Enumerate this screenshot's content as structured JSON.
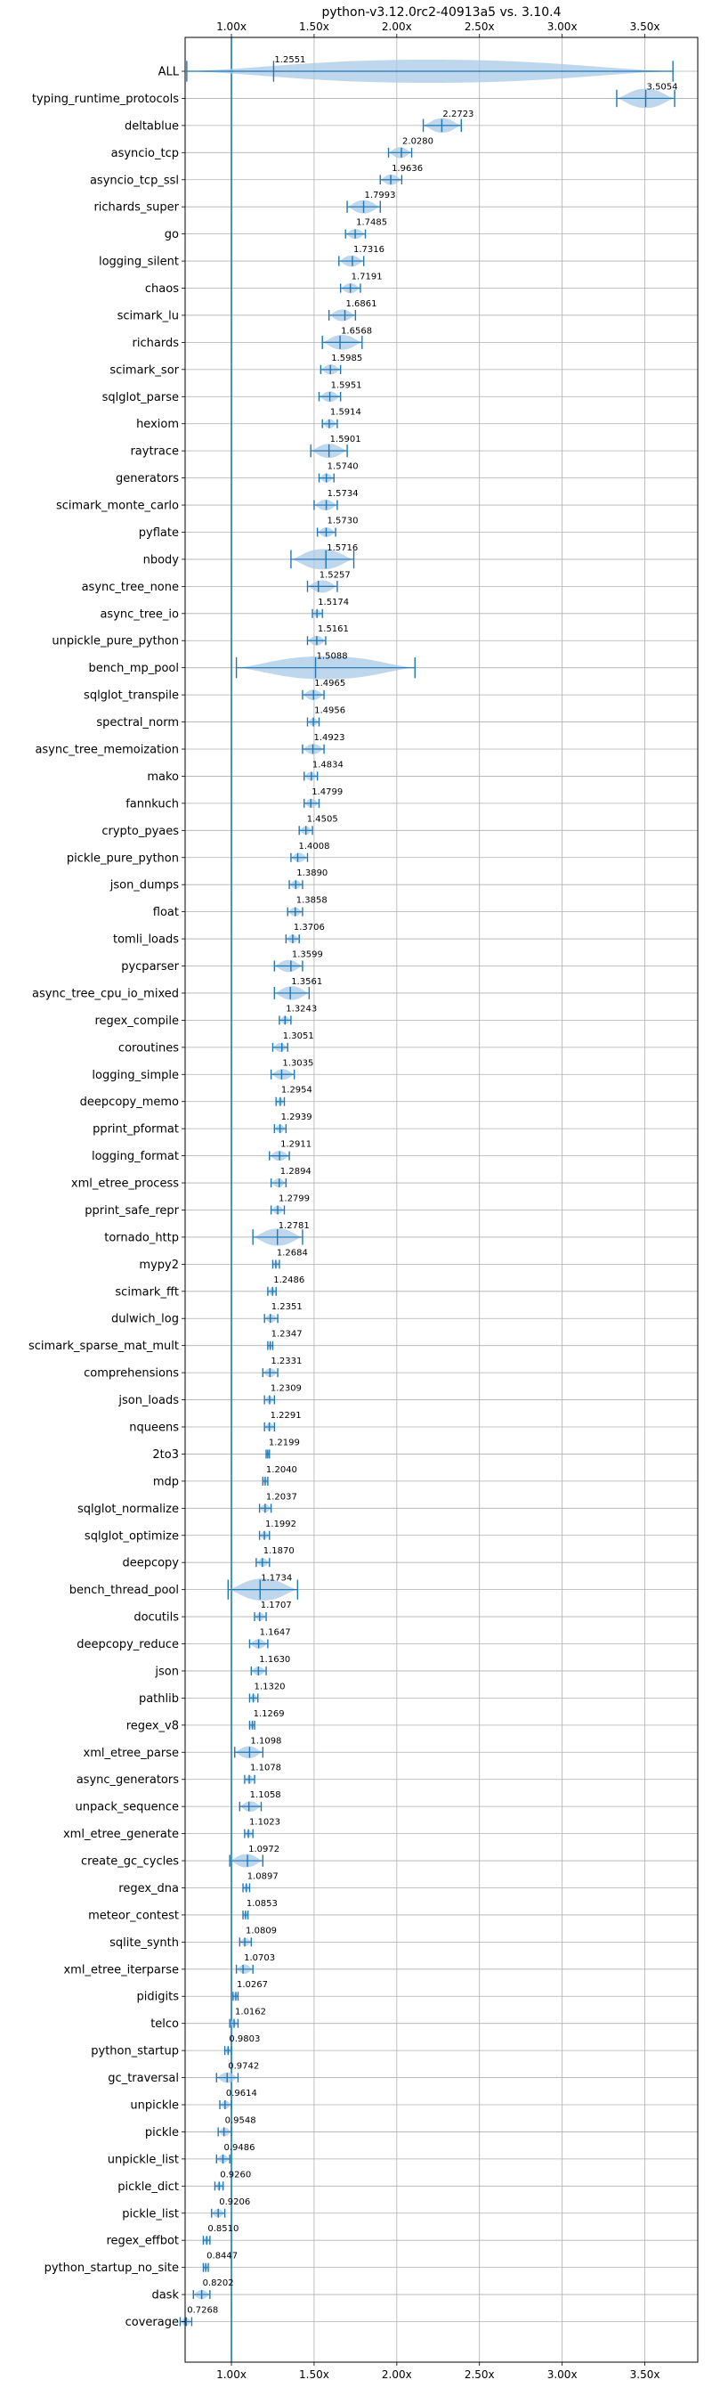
{
  "chart_data": {
    "type": "violin",
    "title": "python-v3.12.0rc2-40913a5 vs. 3.10.4",
    "xlabel": "",
    "ylabel": "",
    "xlim": [
      0.72,
      3.82
    ],
    "x_ticks": [
      1.0,
      1.5,
      2.0,
      2.5,
      3.0,
      3.5
    ],
    "x_tick_labels": [
      "1.00x",
      "1.50x",
      "2.00x",
      "2.50x",
      "3.00x",
      "3.50x"
    ],
    "x_tick_labels_top": true,
    "x_tick_labels_bottom": true,
    "grid": true,
    "reference_line": 1.0,
    "color": "#1f77b4",
    "fill_color": "#a9c9e6",
    "categories": [
      "ALL",
      "typing_runtime_protocols",
      "deltablue",
      "asyncio_tcp",
      "asyncio_tcp_ssl",
      "richards_super",
      "go",
      "logging_silent",
      "chaos",
      "scimark_lu",
      "richards",
      "scimark_sor",
      "sqlglot_parse",
      "hexiom",
      "raytrace",
      "generators",
      "scimark_monte_carlo",
      "pyflate",
      "nbody",
      "async_tree_none",
      "async_tree_io",
      "unpickle_pure_python",
      "bench_mp_pool",
      "sqlglot_transpile",
      "spectral_norm",
      "async_tree_memoization",
      "mako",
      "fannkuch",
      "crypto_pyaes",
      "pickle_pure_python",
      "json_dumps",
      "float",
      "tomli_loads",
      "pycparser",
      "async_tree_cpu_io_mixed",
      "regex_compile",
      "coroutines",
      "logging_simple",
      "deepcopy_memo",
      "pprint_pformat",
      "logging_format",
      "xml_etree_process",
      "pprint_safe_repr",
      "tornado_http",
      "mypy2",
      "scimark_fft",
      "dulwich_log",
      "scimark_sparse_mat_mult",
      "comprehensions",
      "json_loads",
      "nqueens",
      "2to3",
      "mdp",
      "sqlglot_normalize",
      "sqlglot_optimize",
      "deepcopy",
      "bench_thread_pool",
      "docutils",
      "deepcopy_reduce",
      "json",
      "pathlib",
      "regex_v8",
      "xml_etree_parse",
      "async_generators",
      "unpack_sequence",
      "xml_etree_generate",
      "create_gc_cycles",
      "regex_dna",
      "meteor_contest",
      "sqlite_synth",
      "xml_etree_iterparse",
      "pidigits",
      "telco",
      "python_startup",
      "gc_traversal",
      "unpickle",
      "pickle",
      "unpickle_list",
      "pickle_dict",
      "pickle_list",
      "regex_effbot",
      "python_startup_no_site",
      "dask",
      "coverage"
    ],
    "values": [
      1.2551,
      3.5054,
      2.2723,
      2.028,
      1.9636,
      1.7993,
      1.7485,
      1.7316,
      1.7191,
      1.6861,
      1.6568,
      1.5985,
      1.5951,
      1.5914,
      1.5901,
      1.574,
      1.5734,
      1.573,
      1.5716,
      1.5257,
      1.5174,
      1.5161,
      1.5088,
      1.4965,
      1.4956,
      1.4923,
      1.4834,
      1.4799,
      1.4505,
      1.4008,
      1.389,
      1.3858,
      1.3706,
      1.3599,
      1.3561,
      1.3243,
      1.3051,
      1.3035,
      1.2954,
      1.2939,
      1.2911,
      1.2894,
      1.2799,
      1.2781,
      1.2684,
      1.2486,
      1.2351,
      1.2347,
      1.2331,
      1.2309,
      1.2291,
      1.2199,
      1.204,
      1.2037,
      1.1992,
      1.187,
      1.1734,
      1.1707,
      1.1647,
      1.163,
      1.132,
      1.1269,
      1.1098,
      1.1078,
      1.1058,
      1.1023,
      1.0972,
      1.0897,
      1.0853,
      1.0809,
      1.0703,
      1.0267,
      1.0162,
      0.9803,
      0.9742,
      0.9614,
      0.9548,
      0.9486,
      0.926,
      0.9206,
      0.851,
      0.8447,
      0.8202,
      0.7268
    ],
    "value_labels": [
      "1.2551",
      "3.5054",
      "2.2723",
      "2.0280",
      "1.9636",
      "1.7993",
      "1.7485",
      "1.7316",
      "1.7191",
      "1.6861",
      "1.6568",
      "1.5985",
      "1.5951",
      "1.5914",
      "1.5901",
      "1.5740",
      "1.5734",
      "1.5730",
      "1.5716",
      "1.5257",
      "1.5174",
      "1.5161",
      "1.5088",
      "1.4965",
      "1.4956",
      "1.4923",
      "1.4834",
      "1.4799",
      "1.4505",
      "1.4008",
      "1.3890",
      "1.3858",
      "1.3706",
      "1.3599",
      "1.3561",
      "1.3243",
      "1.3051",
      "1.3035",
      "1.2954",
      "1.2939",
      "1.2911",
      "1.2894",
      "1.2799",
      "1.2781",
      "1.2684",
      "1.2486",
      "1.2351",
      "1.2347",
      "1.2331",
      "1.2309",
      "1.2291",
      "1.2199",
      "1.2040",
      "1.2037",
      "1.1992",
      "1.1870",
      "1.1734",
      "1.1707",
      "1.1647",
      "1.1630",
      "1.1320",
      "1.1269",
      "1.1098",
      "1.1078",
      "1.1058",
      "1.1023",
      "1.0972",
      "1.0897",
      "1.0853",
      "1.0809",
      "1.0703",
      "1.0267",
      "1.0162",
      "0.9803",
      "0.9742",
      "0.9614",
      "0.9548",
      "0.9486",
      "0.9260",
      "0.9206",
      "0.8510",
      "0.8447",
      "0.8202",
      "0.7268"
    ],
    "ranges": [
      [
        0.73,
        3.67
      ],
      [
        3.33,
        3.68
      ],
      [
        2.16,
        2.39
      ],
      [
        1.95,
        2.09
      ],
      [
        1.9,
        2.03
      ],
      [
        1.7,
        1.9
      ],
      [
        1.69,
        1.81
      ],
      [
        1.65,
        1.8
      ],
      [
        1.66,
        1.78
      ],
      [
        1.59,
        1.75
      ],
      [
        1.55,
        1.79
      ],
      [
        1.54,
        1.66
      ],
      [
        1.53,
        1.66
      ],
      [
        1.55,
        1.64
      ],
      [
        1.48,
        1.7
      ],
      [
        1.53,
        1.62
      ],
      [
        1.5,
        1.64
      ],
      [
        1.52,
        1.63
      ],
      [
        1.36,
        1.74
      ],
      [
        1.46,
        1.64
      ],
      [
        1.49,
        1.55
      ],
      [
        1.46,
        1.57
      ],
      [
        1.03,
        2.11
      ],
      [
        1.43,
        1.56
      ],
      [
        1.46,
        1.53
      ],
      [
        1.43,
        1.56
      ],
      [
        1.44,
        1.52
      ],
      [
        1.44,
        1.53
      ],
      [
        1.41,
        1.49
      ],
      [
        1.36,
        1.46
      ],
      [
        1.35,
        1.43
      ],
      [
        1.34,
        1.43
      ],
      [
        1.33,
        1.41
      ],
      [
        1.26,
        1.43
      ],
      [
        1.26,
        1.47
      ],
      [
        1.29,
        1.36
      ],
      [
        1.25,
        1.34
      ],
      [
        1.24,
        1.38
      ],
      [
        1.27,
        1.32
      ],
      [
        1.26,
        1.33
      ],
      [
        1.23,
        1.35
      ],
      [
        1.24,
        1.33
      ],
      [
        1.24,
        1.32
      ],
      [
        1.13,
        1.43
      ],
      [
        1.25,
        1.29
      ],
      [
        1.22,
        1.27
      ],
      [
        1.2,
        1.28
      ],
      [
        1.22,
        1.25
      ],
      [
        1.19,
        1.28
      ],
      [
        1.2,
        1.26
      ],
      [
        1.2,
        1.26
      ],
      [
        1.21,
        1.23
      ],
      [
        1.19,
        1.22
      ],
      [
        1.17,
        1.24
      ],
      [
        1.17,
        1.23
      ],
      [
        1.15,
        1.23
      ],
      [
        0.98,
        1.4
      ],
      [
        1.14,
        1.21
      ],
      [
        1.11,
        1.22
      ],
      [
        1.12,
        1.21
      ],
      [
        1.11,
        1.16
      ],
      [
        1.11,
        1.14
      ],
      [
        1.02,
        1.19
      ],
      [
        1.08,
        1.14
      ],
      [
        1.05,
        1.18
      ],
      [
        1.08,
        1.13
      ],
      [
        0.99,
        1.19
      ],
      [
        1.07,
        1.11
      ],
      [
        1.07,
        1.1
      ],
      [
        1.05,
        1.12
      ],
      [
        1.03,
        1.13
      ],
      [
        1.01,
        1.04
      ],
      [
        0.99,
        1.04
      ],
      [
        0.96,
        1.0
      ],
      [
        0.91,
        1.04
      ],
      [
        0.93,
        1.0
      ],
      [
        0.92,
        1.0
      ],
      [
        0.91,
        0.99
      ],
      [
        0.9,
        0.95
      ],
      [
        0.88,
        0.96
      ],
      [
        0.83,
        0.87
      ],
      [
        0.83,
        0.86
      ],
      [
        0.77,
        0.87
      ],
      [
        0.69,
        0.76
      ]
    ]
  }
}
